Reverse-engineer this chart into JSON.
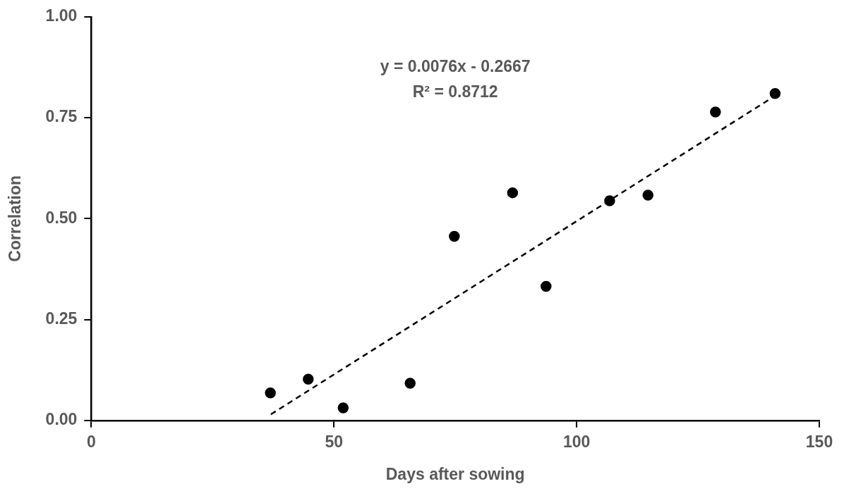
{
  "chart_data": {
    "type": "scatter",
    "xlabel": "Days after sowing",
    "ylabel": "Correlation",
    "annotations": [
      "y = 0.0076x - 0.2667",
      "R² = 0.8712"
    ],
    "x": [
      36.9,
      44.7,
      51.9,
      65.7,
      74.8,
      86.8,
      93.7,
      106.8,
      114.7,
      128.6,
      140.9
    ],
    "series": [
      {
        "color": "#000000",
        "values": [
          0.068,
          0.102,
          0.031,
          0.092,
          0.456,
          0.564,
          0.332,
          0.544,
          0.558,
          0.764,
          0.81
        ],
        "marker": "circle"
      },
      {
        "type": "line",
        "color": "#000000",
        "x": [
          37,
          141
        ],
        "values": [
          0.015,
          0.805
        ],
        "marker": "none",
        "line_style": "dashed"
      }
    ],
    "xlim": [
      0,
      150
    ],
    "xticks": [
      0,
      50,
      100,
      150
    ],
    "ylim": [
      0,
      1
    ],
    "yticks": [
      {
        "value": 0,
        "label": "0.00"
      },
      {
        "value": 0.25,
        "label": "0.25"
      },
      {
        "value": 0.5,
        "label": "0.50"
      },
      {
        "value": 0.75,
        "label": "0.75"
      },
      {
        "value": 1,
        "label": "1.00"
      }
    ],
    "grid": false,
    "legend": false
  }
}
